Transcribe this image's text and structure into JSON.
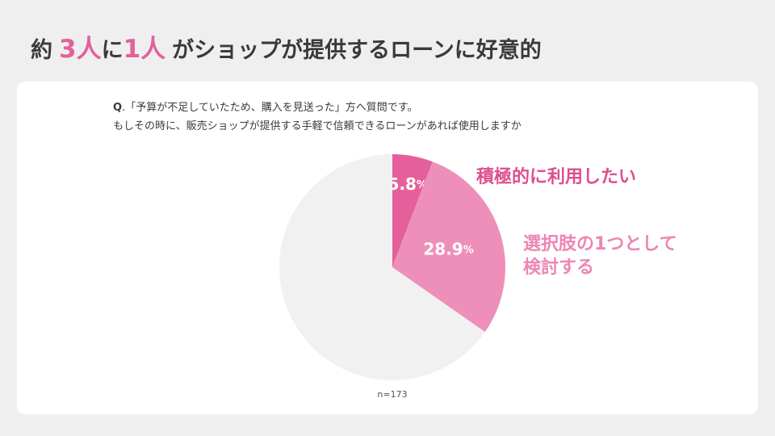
{
  "title": {
    "prefix": "約",
    "num1": "3",
    "mid1": "人",
    "mid2": "に",
    "num2": "1",
    "mid3": "人",
    "rest": "がショップが提供するローンに好意的"
  },
  "question": {
    "q_label": "Q",
    "line1": ".「予算が不足していたため、購入を見送った」方へ質問です。",
    "line2": "もしその時に、販売ショップが提供する手軽で信頼できるローンがあれば使用しますか"
  },
  "colors": {
    "strong": "#e5609a",
    "medium": "#ee8fba",
    "rest": "#f1f1f1",
    "label_strong": "#dd4f90",
    "label_medium": "#ec86b4"
  },
  "chart_data": {
    "type": "pie",
    "slices": [
      {
        "label": "積極的に利用したい",
        "value": 5.8,
        "color": "#e5609a",
        "value_text": "5.8",
        "unit": "%"
      },
      {
        "label": "選択肢の1つとして検討する",
        "value": 28.9,
        "color": "#ee8fba",
        "value_text": "28.9",
        "unit": "%"
      },
      {
        "label": "",
        "value": 65.3,
        "color": "#f1f1f1",
        "value_text": "",
        "unit": ""
      }
    ],
    "category_labels": [
      {
        "lines": [
          "積極的に利用したい"
        ],
        "color": "#dd4f90"
      },
      {
        "lines": [
          "選択肢の1つとして",
          "検討する"
        ],
        "color": "#ec86b4"
      }
    ],
    "sample_note": "n=173"
  }
}
